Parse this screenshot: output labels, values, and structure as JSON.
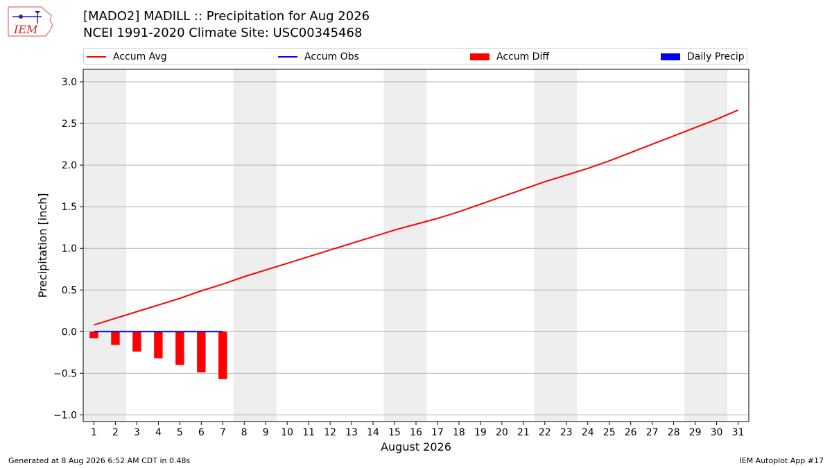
{
  "header": {
    "title_line1": "[MADO2] MADILL :: Precipitation for Aug 2026",
    "title_line2": "NCEI 1991-2020 Climate Site: USC00345468",
    "logo_text": "IEM"
  },
  "footer": {
    "left": "Generated at 8 Aug 2026 6:52 AM CDT in 0.48s",
    "right": "IEM Autoplot App #17"
  },
  "colors": {
    "accum_avg": "#ff0000",
    "accum_obs": "#0000ff",
    "accum_diff": "#ff0000",
    "daily_precip": "#0000ff",
    "weekend_shade": "#eeeeee",
    "grid": "#b0b0b0"
  },
  "legend": {
    "placement": "top, above plot",
    "items": [
      {
        "label": "Accum Avg",
        "type": "line",
        "color": "#ff0000"
      },
      {
        "label": "Accum Obs",
        "type": "line",
        "color": "#0000ff"
      },
      {
        "label": "Accum Diff",
        "type": "box",
        "color": "#ff0000"
      },
      {
        "label": "Daily Precip",
        "type": "box",
        "color": "#0000ff"
      }
    ]
  },
  "chart_data": {
    "type": "line",
    "xlabel": "August 2026",
    "ylabel": "Precipitation [inch]",
    "x": [
      1,
      2,
      3,
      4,
      5,
      6,
      7,
      8,
      9,
      10,
      11,
      12,
      13,
      14,
      15,
      16,
      17,
      18,
      19,
      20,
      21,
      22,
      23,
      24,
      25,
      26,
      27,
      28,
      29,
      30,
      31
    ],
    "xlim": [
      0.5,
      31.5
    ],
    "ylim": [
      -1.08,
      3.15
    ],
    "yticks": [
      -1.0,
      -0.5,
      0.0,
      0.5,
      1.0,
      1.5,
      2.0,
      2.5,
      3.0
    ],
    "ytick_labels": [
      "−1.0",
      "−0.5",
      "0.0",
      "0.5",
      "1.0",
      "1.5",
      "2.0",
      "2.5",
      "3.0"
    ],
    "grid": "horizontal",
    "weekend_shading": [
      [
        0.5,
        2.5
      ],
      [
        7.5,
        9.5
      ],
      [
        14.5,
        16.5
      ],
      [
        21.5,
        23.5
      ],
      [
        28.5,
        30.5
      ]
    ],
    "series": [
      {
        "name": "Accum Avg",
        "type": "line",
        "x": [
          1,
          2,
          3,
          4,
          5,
          6,
          7,
          8,
          9,
          10,
          11,
          12,
          13,
          14,
          15,
          16,
          17,
          18,
          19,
          20,
          21,
          22,
          23,
          24,
          25,
          26,
          27,
          28,
          29,
          30,
          31
        ],
        "values": [
          0.08,
          0.16,
          0.24,
          0.32,
          0.4,
          0.49,
          0.57,
          0.66,
          0.74,
          0.82,
          0.9,
          0.98,
          1.06,
          1.14,
          1.22,
          1.29,
          1.36,
          1.44,
          1.53,
          1.62,
          1.71,
          1.8,
          1.88,
          1.96,
          2.05,
          2.15,
          2.25,
          2.35,
          2.45,
          2.55,
          2.66
        ]
      },
      {
        "name": "Accum Obs",
        "type": "line",
        "x": [
          1,
          2,
          3,
          4,
          5,
          6,
          7
        ],
        "values": [
          0,
          0,
          0,
          0,
          0,
          0,
          0
        ]
      },
      {
        "name": "Accum Diff",
        "type": "bar",
        "x": [
          1,
          2,
          3,
          4,
          5,
          6,
          7
        ],
        "values": [
          -0.08,
          -0.16,
          -0.24,
          -0.32,
          -0.4,
          -0.49,
          -0.57
        ]
      },
      {
        "name": "Daily Precip",
        "type": "bar",
        "x": [
          1,
          2,
          3,
          4,
          5,
          6,
          7
        ],
        "values": [
          0,
          0,
          0,
          0,
          0,
          0,
          0
        ]
      }
    ]
  }
}
